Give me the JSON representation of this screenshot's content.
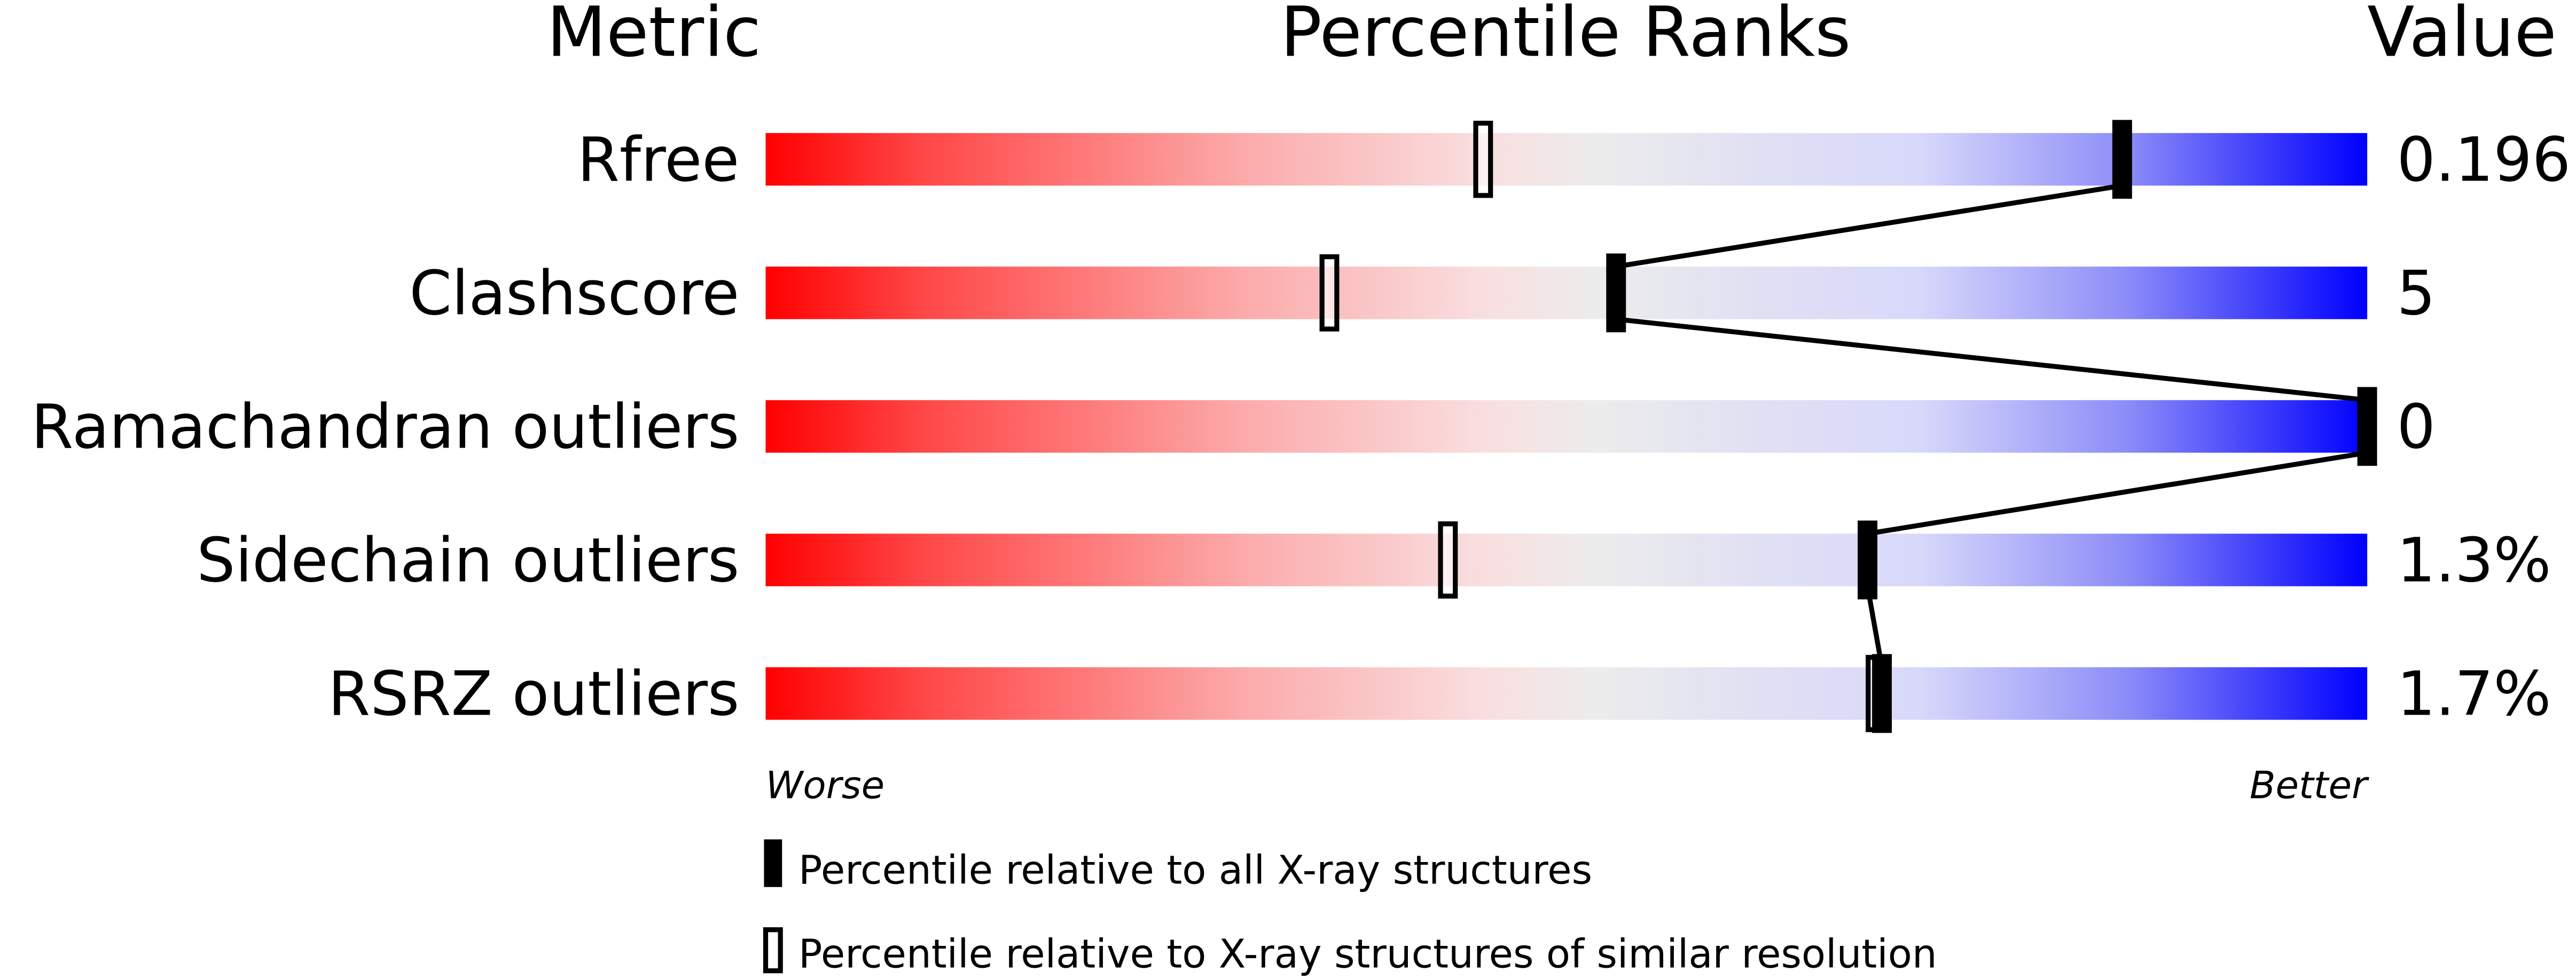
{
  "chart_data": {
    "type": "percentile-bar",
    "headers": {
      "metric": "Metric",
      "ranks": "Percentile Ranks",
      "value": "Value"
    },
    "xlim": [
      0,
      100
    ],
    "metrics": [
      {
        "name": "Rfree",
        "value": "0.196",
        "percentile_all": 84.7,
        "percentile_similar": 44.8
      },
      {
        "name": "Clashscore",
        "value": "5",
        "percentile_all": 53.1,
        "percentile_similar": 35.2
      },
      {
        "name": "Ramachandran outliers",
        "value": "0",
        "percentile_all": 100,
        "percentile_similar": null
      },
      {
        "name": "Sidechain outliers",
        "value": "1.3%",
        "percentile_all": 68.8,
        "percentile_similar": 42.6
      },
      {
        "name": "RSRZ outliers",
        "value": "1.7%",
        "percentile_all": 69.7,
        "percentile_similar": 69.3
      }
    ],
    "axis_left_label": "Worse",
    "axis_right_label": "Better",
    "legend": [
      {
        "marker": "filled",
        "label": "Percentile relative to all X-ray structures"
      },
      {
        "marker": "open",
        "label": "Percentile relative to X-ray structures of similar resolution"
      }
    ],
    "colors": {
      "worse": "#ff0000",
      "middle": "#eeeeee",
      "better": "#0000ff",
      "marker": "#000000"
    }
  }
}
